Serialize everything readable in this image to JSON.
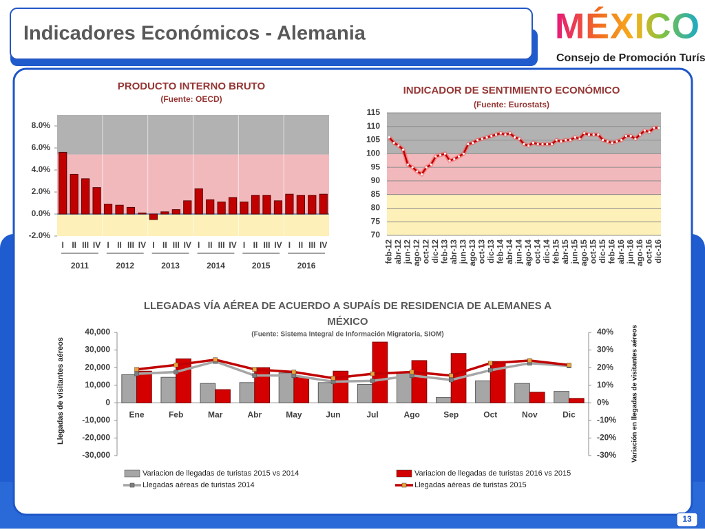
{
  "header": {
    "title": "Indicadores Económicos - Alemania",
    "logo": "MÉXICO",
    "logo_subtitle": "Consejo de Promoción Turística",
    "page_number": "13"
  },
  "chart_data": [
    {
      "type": "bar",
      "title": "PRODUCTO INTERNO BRUTO",
      "subtitle": "(Fuente: OECD)",
      "categories": [
        "I",
        "II",
        "III",
        "IV",
        "I",
        "II",
        "III",
        "IV",
        "I",
        "II",
        "III",
        "IV",
        "I",
        "II",
        "III",
        "IV",
        "I",
        "II",
        "III",
        "IV",
        "I",
        "II",
        "III",
        "IV"
      ],
      "groups": [
        "2011",
        "2012",
        "2013",
        "2014",
        "2015",
        "2016"
      ],
      "values": [
        5.6,
        3.6,
        3.2,
        2.4,
        0.9,
        0.8,
        0.6,
        0.1,
        -0.5,
        0.2,
        0.4,
        1.2,
        2.3,
        1.3,
        1.1,
        1.5,
        1.1,
        1.7,
        1.7,
        1.2,
        1.8,
        1.7,
        1.7,
        1.8
      ],
      "color": "#c00000",
      "ylim": [
        -2,
        9
      ],
      "yticks": [
        {
          "value": -2,
          "label": "-2.0%"
        },
        {
          "value": 0,
          "label": "0.0%"
        },
        {
          "value": 2,
          "label": "2.0%"
        },
        {
          "value": 4,
          "label": "4.0%"
        },
        {
          "value": 6,
          "label": "6.0%"
        },
        {
          "value": 8,
          "label": "8.0%"
        }
      ],
      "bands": [
        {
          "from": 5.4,
          "to": 9,
          "color": "#b2b2b2"
        },
        {
          "from": 0,
          "to": 5.4,
          "color": "#f2b9bd"
        },
        {
          "from": -2,
          "to": 0,
          "color": "#fdf0b8"
        }
      ],
      "grid": false
    },
    {
      "type": "line",
      "title": "INDICADOR DE SENTIMIENTO ECONÓMICO",
      "subtitle": "(Fuente: Eurostats)",
      "categories": [
        "feb-12",
        null,
        "abr-12",
        null,
        "jun-12",
        null,
        "ago-12",
        null,
        "oct-12",
        null,
        "dic-12",
        null,
        "feb-13",
        null,
        "abr-13",
        null,
        "jun-13",
        null,
        "ago-13",
        null,
        "oct-13",
        null,
        "dic-13",
        null,
        "feb-14",
        null,
        "abr-14",
        null,
        "jun-14",
        null,
        "ago-14",
        null,
        "oct-14",
        null,
        "dic-14",
        null,
        "feb-15",
        null,
        "abr-15",
        null,
        "jun-15",
        null,
        "ago-15",
        null,
        "oct-15",
        null,
        "dic-15",
        null,
        "feb-16",
        null,
        "abr-16",
        null,
        "jun-16",
        null,
        "ago-16",
        null,
        "oct-16",
        null,
        "dic-16"
      ],
      "values": [
        106,
        104,
        103,
        101.5,
        96,
        95,
        93.5,
        92.5,
        95,
        96,
        99,
        99.5,
        100,
        97.5,
        98,
        99,
        100,
        103.5,
        104,
        105,
        105.5,
        106,
        106.5,
        107,
        107.5,
        107,
        107.5,
        106,
        105.5,
        103.5,
        103,
        104,
        103.5,
        103.5,
        103.5,
        103.5,
        105,
        104.5,
        105,
        105,
        106,
        105.5,
        107.5,
        107,
        107,
        107,
        105,
        104.5,
        104,
        104.5,
        105,
        106.5,
        106.5,
        105.5,
        107,
        108.5,
        108,
        109.5,
        109.5
      ],
      "color": "#c00000",
      "ylim": [
        70,
        115
      ],
      "yticks": [
        70,
        75,
        80,
        85,
        90,
        95,
        100,
        105,
        110,
        115
      ],
      "bands": [
        {
          "from": 100,
          "to": 115,
          "color": "#b2b2b2"
        },
        {
          "from": 85,
          "to": 100,
          "color": "#f2b9bd"
        },
        {
          "from": 70,
          "to": 85,
          "color": "#fdf0b8"
        }
      ],
      "grid": true
    },
    {
      "type": "combo",
      "title": "LLEGADAS VÍA AÉREA DE ACUERDO A SUPAÍS DE RESIDENCIA DE  ALEMANES A MÉXICO",
      "subtitle": "(Fuente: Sistema Integral de Información Migratoria, SIOM)",
      "y_label": "Llegadas de visitantes aéreos",
      "y2_label": "Variación en llegadas de visitantes aéreos",
      "categories": [
        "Ene",
        "Feb",
        "Mar",
        "Abr",
        "May",
        "Jun",
        "Jul",
        "Ago",
        "Sep",
        "Oct",
        "Nov",
        "Dic"
      ],
      "series": [
        {
          "name": "Variacion de llegadas de turistas  2015 vs 2014",
          "type": "bar",
          "axis": "y2",
          "color": "#a6a6a6",
          "values": [
            16,
            14.5,
            11,
            11.5,
            17,
            11.5,
            10.5,
            17,
            3,
            12.5,
            11,
            6.5
          ]
        },
        {
          "name": "Variacion de llegadas de turistas  2016 vs 2015",
          "type": "bar",
          "axis": "y2",
          "color": "#d40000",
          "values": [
            18,
            25,
            7.5,
            20,
            14.5,
            18,
            34.5,
            24,
            28,
            23.5,
            6,
            2.5
          ]
        },
        {
          "name": "Llegadas aéreas de turistas 2014",
          "type": "line",
          "color": "#a6a6a6",
          "values": [
            16500,
            17500,
            23500,
            15500,
            15500,
            12000,
            12500,
            15500,
            13000,
            18500,
            22500,
            21000
          ]
        },
        {
          "name": "Llegadas aéreas de turistas 2015",
          "type": "line",
          "color": "#c00000",
          "values": [
            19000,
            21500,
            24500,
            19000,
            17500,
            14000,
            16500,
            17500,
            15500,
            22500,
            24000,
            21500
          ]
        }
      ],
      "ylim": [
        -30000,
        40000
      ],
      "yticks": [
        {
          "value": -30000,
          "label": "-30,000"
        },
        {
          "value": -20000,
          "label": "-20,000"
        },
        {
          "value": -10000,
          "label": "-10,000"
        },
        0,
        {
          "value": 10000,
          "label": "10,000"
        },
        {
          "value": 20000,
          "label": "20,000"
        },
        {
          "value": 30000,
          "label": "30,000"
        },
        {
          "value": 40000,
          "label": "40,000"
        }
      ],
      "y2lim": [
        -30,
        40
      ],
      "y2ticks": [
        {
          "value": -30,
          "label": "-30%"
        },
        {
          "value": -20,
          "label": "-20%"
        },
        {
          "value": -10,
          "label": "-10%"
        },
        {
          "value": 0,
          "label": "0%"
        },
        {
          "value": 10,
          "label": "10%"
        },
        {
          "value": 20,
          "label": "20%"
        },
        {
          "value": 30,
          "label": "30%"
        },
        {
          "value": 40,
          "label": "40%"
        }
      ],
      "grid": false,
      "legend": "bottom"
    }
  ]
}
